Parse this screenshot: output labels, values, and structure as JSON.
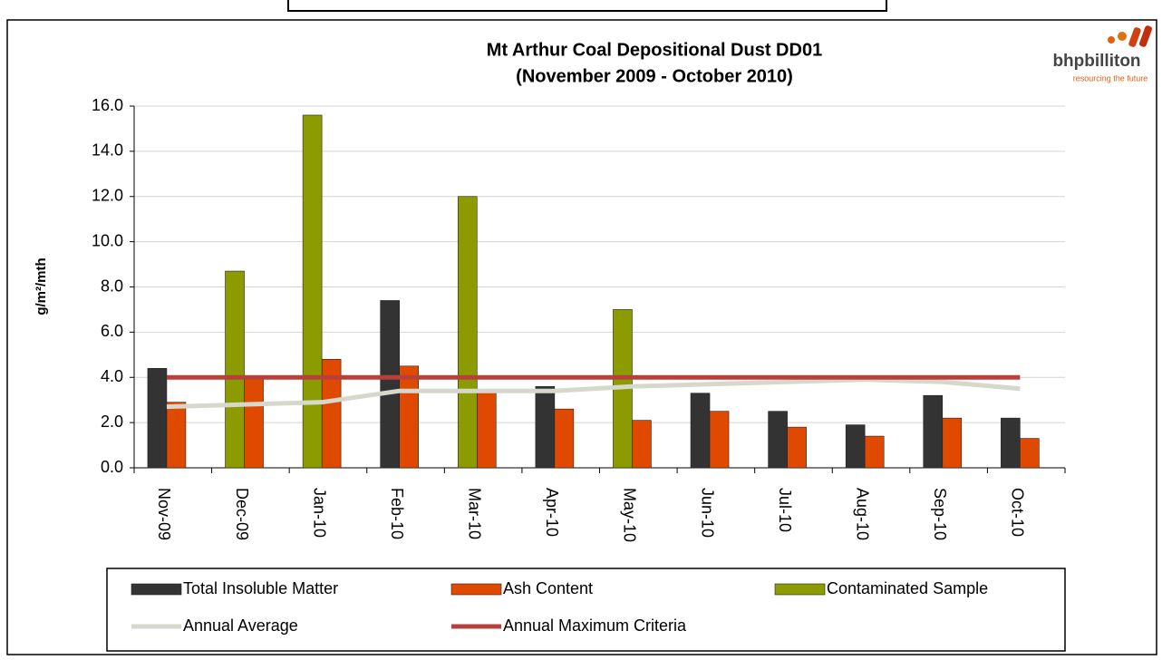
{
  "chart_data": {
    "type": "bar",
    "title": "Mt Arthur Coal Depositional Dust DD01",
    "subtitle": "(November 2009 - October 2010)",
    "y_label": "g/m²/mth",
    "logo": {
      "name": "bhpbilliton",
      "tagline": "resourcing the future"
    },
    "categories": [
      "Nov-09",
      "Dec-09",
      "Jan-10",
      "Feb-10",
      "Mar-10",
      "Apr-10",
      "May-10",
      "Jun-10",
      "Jul-10",
      "Aug-10",
      "Sep-10",
      "Oct-10"
    ],
    "series": [
      {
        "name": "Total Insoluble Matter",
        "type": "bar",
        "slot": 0,
        "color": "#333333",
        "values": [
          4.4,
          null,
          null,
          7.4,
          null,
          3.6,
          null,
          3.3,
          2.5,
          1.9,
          3.2,
          2.2
        ]
      },
      {
        "name": "Ash Content",
        "type": "bar",
        "slot": 1,
        "color": "#e04a00",
        "values": [
          2.9,
          4.0,
          4.8,
          4.5,
          3.4,
          2.6,
          2.1,
          2.5,
          1.8,
          1.4,
          2.2,
          1.3
        ]
      },
      {
        "name": "Contaminated Sample",
        "type": "bar",
        "slot": 0,
        "color": "#8c9c00",
        "values": [
          null,
          8.7,
          15.6,
          null,
          12.0,
          null,
          7.0,
          null,
          null,
          null,
          null,
          null
        ]
      },
      {
        "name": "Annual Average",
        "type": "line",
        "color": "#d6d8cc",
        "values": [
          2.7,
          2.8,
          2.9,
          3.4,
          3.4,
          3.4,
          3.6,
          3.7,
          3.8,
          3.9,
          3.8,
          3.5
        ]
      },
      {
        "name": "Annual Maximum Criteria",
        "type": "line",
        "color": "#b8403a",
        "values": [
          4.0,
          4.0,
          4.0,
          4.0,
          4.0,
          4.0,
          4.0,
          4.0,
          4.0,
          4.0,
          4.0,
          4.0
        ]
      }
    ],
    "ylim": [
      0,
      16
    ],
    "yticks": [
      {
        "value": 0,
        "label": "0.0"
      },
      {
        "value": 2,
        "label": "2.0"
      },
      {
        "value": 4,
        "label": "4.0"
      },
      {
        "value": 6,
        "label": "6.0"
      },
      {
        "value": 8,
        "label": "8.0"
      },
      {
        "value": 10,
        "label": "10.0"
      },
      {
        "value": 12,
        "label": "12.0"
      },
      {
        "value": 14,
        "label": "14.0"
      },
      {
        "value": 16,
        "label": "16.0"
      }
    ],
    "grid": true
  }
}
